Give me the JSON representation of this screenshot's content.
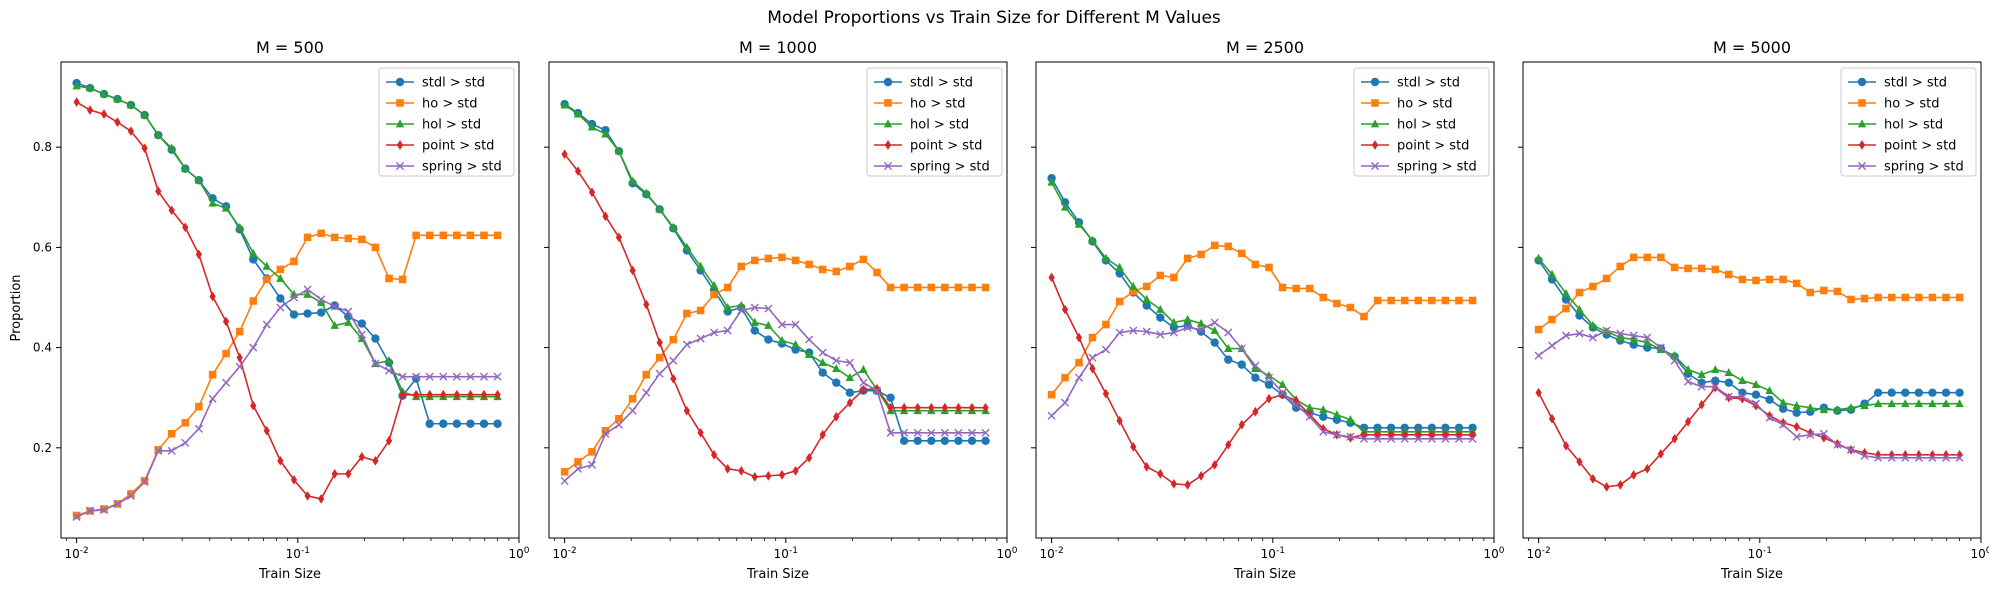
{
  "chart_data": {
    "type": "line",
    "title": "Model Proportions vs Train Size for Different M Values",
    "xlabel": "Train Size",
    "ylabel": "Proportion",
    "xscale": "log",
    "xlim": [
      0.0085,
      1.0
    ],
    "ylim": [
      0.02,
      0.97
    ],
    "yticks": [
      0.2,
      0.4,
      0.6,
      0.8
    ],
    "xtick_labels": [
      "10^-2",
      "10^-1",
      "10^0"
    ],
    "grid": false,
    "legend_position": "upper right",
    "series_styles": [
      {
        "name": "stdl > std",
        "color": "#1f77b4",
        "marker": "o"
      },
      {
        "name": "ho > std",
        "color": "#ff7f0e",
        "marker": "s"
      },
      {
        "name": "hol > std",
        "color": "#2ca02c",
        "marker": "^"
      },
      {
        "name": "point > std",
        "color": "#d62728",
        "marker": "d"
      },
      {
        "name": "spring > std",
        "color": "#9467bd",
        "marker": "x"
      }
    ],
    "x": [
      0.01,
      0.0115,
      0.0133,
      0.0153,
      0.0176,
      0.0203,
      0.0234,
      0.0269,
      0.031,
      0.0357,
      0.0412,
      0.0474,
      0.0546,
      0.0629,
      0.0724,
      0.0834,
      0.0961,
      0.1107,
      0.1275,
      0.1468,
      0.1691,
      0.1948,
      0.2243,
      0.2584,
      0.2976,
      0.3427,
      0.3947,
      0.4547,
      0.5236,
      0.6031,
      0.6946,
      0.8
    ],
    "panels": [
      {
        "title": "M = 500",
        "series": [
          {
            "name": "stdl > std",
            "values": [
              0.928,
              0.918,
              0.906,
              0.896,
              0.884,
              0.864,
              0.824,
              0.795,
              0.757,
              0.734,
              0.698,
              0.682,
              0.636,
              0.576,
              0.538,
              0.498,
              0.466,
              0.468,
              0.47,
              0.484,
              0.462,
              0.448,
              0.418,
              0.37,
              0.304,
              0.338,
              0.248,
              0.248,
              0.248,
              0.248,
              0.248,
              0.248
            ]
          },
          {
            "name": "ho > std",
            "values": [
              0.065,
              0.074,
              0.078,
              0.088,
              0.108,
              0.134,
              0.196,
              0.228,
              0.25,
              0.282,
              0.346,
              0.388,
              0.432,
              0.493,
              0.536,
              0.556,
              0.572,
              0.62,
              0.628,
              0.62,
              0.618,
              0.616,
              0.6,
              0.538,
              0.536,
              0.624,
              0.624,
              0.624,
              0.624,
              0.624,
              0.624,
              0.624
            ]
          },
          {
            "name": "hol > std",
            "values": [
              0.922,
              0.918,
              0.906,
              0.896,
              0.884,
              0.864,
              0.824,
              0.798,
              0.757,
              0.734,
              0.688,
              0.678,
              0.64,
              0.588,
              0.562,
              0.538,
              0.506,
              0.506,
              0.49,
              0.444,
              0.45,
              0.418,
              0.368,
              0.374,
              0.312,
              0.302,
              0.302,
              0.302,
              0.302,
              0.302,
              0.302,
              0.302
            ]
          },
          {
            "name": "point > std",
            "values": [
              0.89,
              0.874,
              0.866,
              0.85,
              0.832,
              0.798,
              0.712,
              0.674,
              0.64,
              0.586,
              0.502,
              0.452,
              0.38,
              0.284,
              0.234,
              0.174,
              0.136,
              0.104,
              0.098,
              0.148,
              0.148,
              0.182,
              0.174,
              0.214,
              0.306,
              0.306,
              0.306,
              0.306,
              0.306,
              0.306,
              0.306,
              0.306
            ]
          },
          {
            "name": "spring > std",
            "values": [
              0.062,
              0.074,
              0.076,
              0.088,
              0.104,
              0.132,
              0.194,
              0.194,
              0.21,
              0.238,
              0.298,
              0.33,
              0.362,
              0.4,
              0.446,
              0.48,
              0.5,
              0.516,
              0.496,
              0.482,
              0.472,
              0.426,
              0.368,
              0.354,
              0.342,
              0.342,
              0.342,
              0.342,
              0.342,
              0.342,
              0.342,
              0.342
            ]
          }
        ]
      },
      {
        "title": "M = 1000",
        "series": [
          {
            "name": "stdl > std",
            "values": [
              0.886,
              0.868,
              0.846,
              0.834,
              0.792,
              0.728,
              0.706,
              0.676,
              0.638,
              0.594,
              0.554,
              0.514,
              0.472,
              0.48,
              0.434,
              0.416,
              0.408,
              0.396,
              0.39,
              0.35,
              0.33,
              0.31,
              0.314,
              0.314,
              0.3,
              0.214,
              0.214,
              0.214,
              0.214,
              0.214,
              0.214,
              0.214
            ]
          },
          {
            "name": "ho > std",
            "values": [
              0.152,
              0.172,
              0.192,
              0.234,
              0.258,
              0.298,
              0.346,
              0.38,
              0.416,
              0.468,
              0.474,
              0.506,
              0.52,
              0.562,
              0.574,
              0.578,
              0.58,
              0.574,
              0.566,
              0.556,
              0.552,
              0.562,
              0.576,
              0.55,
              0.52,
              0.52,
              0.52,
              0.52,
              0.52,
              0.52,
              0.52,
              0.52
            ]
          },
          {
            "name": "hol > std",
            "values": [
              0.884,
              0.866,
              0.84,
              0.826,
              0.792,
              0.732,
              0.708,
              0.676,
              0.64,
              0.6,
              0.562,
              0.524,
              0.48,
              0.484,
              0.45,
              0.444,
              0.414,
              0.406,
              0.386,
              0.37,
              0.358,
              0.34,
              0.356,
              0.316,
              0.274,
              0.274,
              0.274,
              0.274,
              0.274,
              0.274,
              0.274,
              0.274
            ]
          },
          {
            "name": "point > std",
            "values": [
              0.786,
              0.752,
              0.71,
              0.662,
              0.62,
              0.554,
              0.486,
              0.41,
              0.338,
              0.274,
              0.23,
              0.186,
              0.158,
              0.154,
              0.142,
              0.144,
              0.146,
              0.154,
              0.18,
              0.226,
              0.262,
              0.29,
              0.316,
              0.318,
              0.28,
              0.28,
              0.28,
              0.28,
              0.28,
              0.28,
              0.28,
              0.28
            ]
          },
          {
            "name": "spring > std",
            "values": [
              0.134,
              0.158,
              0.166,
              0.228,
              0.246,
              0.274,
              0.31,
              0.348,
              0.374,
              0.406,
              0.418,
              0.43,
              0.434,
              0.474,
              0.48,
              0.478,
              0.446,
              0.446,
              0.416,
              0.39,
              0.374,
              0.37,
              0.33,
              0.314,
              0.23,
              0.23,
              0.23,
              0.23,
              0.23,
              0.23,
              0.23,
              0.23
            ]
          }
        ]
      },
      {
        "title": "M = 2500",
        "series": [
          {
            "name": "stdl > std",
            "values": [
              0.738,
              0.69,
              0.65,
              0.612,
              0.574,
              0.548,
              0.51,
              0.484,
              0.46,
              0.44,
              0.444,
              0.432,
              0.41,
              0.376,
              0.366,
              0.34,
              0.326,
              0.306,
              0.28,
              0.27,
              0.262,
              0.256,
              0.25,
              0.24,
              0.24,
              0.24,
              0.24,
              0.24,
              0.24,
              0.24,
              0.24,
              0.24
            ]
          },
          {
            "name": "ho > std",
            "values": [
              0.306,
              0.34,
              0.37,
              0.42,
              0.446,
              0.492,
              0.512,
              0.522,
              0.544,
              0.54,
              0.578,
              0.586,
              0.604,
              0.602,
              0.588,
              0.566,
              0.56,
              0.52,
              0.518,
              0.518,
              0.5,
              0.488,
              0.48,
              0.462,
              0.494,
              0.494,
              0.494,
              0.494,
              0.494,
              0.494,
              0.494,
              0.494
            ]
          },
          {
            "name": "hol > std",
            "values": [
              0.73,
              0.68,
              0.646,
              0.614,
              0.578,
              0.56,
              0.522,
              0.496,
              0.476,
              0.45,
              0.456,
              0.448,
              0.434,
              0.398,
              0.398,
              0.358,
              0.344,
              0.326,
              0.296,
              0.28,
              0.276,
              0.266,
              0.256,
              0.232,
              0.232,
              0.232,
              0.232,
              0.232,
              0.232,
              0.232,
              0.232,
              0.232
            ]
          },
          {
            "name": "point > std",
            "values": [
              0.54,
              0.476,
              0.42,
              0.358,
              0.308,
              0.254,
              0.202,
              0.162,
              0.148,
              0.128,
              0.126,
              0.144,
              0.166,
              0.206,
              0.246,
              0.272,
              0.298,
              0.306,
              0.294,
              0.266,
              0.238,
              0.226,
              0.22,
              0.226,
              0.226,
              0.226,
              0.226,
              0.226,
              0.226,
              0.226,
              0.226,
              0.226
            ]
          },
          {
            "name": "spring > std",
            "values": [
              0.264,
              0.29,
              0.34,
              0.38,
              0.396,
              0.43,
              0.434,
              0.432,
              0.426,
              0.43,
              0.44,
              0.436,
              0.45,
              0.43,
              0.398,
              0.364,
              0.34,
              0.31,
              0.286,
              0.262,
              0.232,
              0.226,
              0.222,
              0.218,
              0.218,
              0.218,
              0.218,
              0.218,
              0.218,
              0.218,
              0.218,
              0.218
            ]
          }
        ]
      },
      {
        "title": "M = 5000",
        "series": [
          {
            "name": "stdl > std",
            "values": [
              0.574,
              0.536,
              0.496,
              0.464,
              0.44,
              0.426,
              0.414,
              0.406,
              0.4,
              0.398,
              0.382,
              0.348,
              0.33,
              0.334,
              0.33,
              0.31,
              0.306,
              0.296,
              0.278,
              0.27,
              0.272,
              0.28,
              0.274,
              0.276,
              0.288,
              0.31,
              0.31,
              0.31,
              0.31,
              0.31,
              0.31,
              0.31
            ]
          },
          {
            "name": "ho > std",
            "values": [
              0.436,
              0.456,
              0.478,
              0.51,
              0.522,
              0.538,
              0.562,
              0.58,
              0.58,
              0.58,
              0.56,
              0.558,
              0.558,
              0.556,
              0.546,
              0.536,
              0.534,
              0.536,
              0.536,
              0.528,
              0.51,
              0.514,
              0.512,
              0.496,
              0.498,
              0.5,
              0.5,
              0.5,
              0.5,
              0.5,
              0.5,
              0.5
            ]
          },
          {
            "name": "hol > std",
            "values": [
              0.578,
              0.546,
              0.508,
              0.476,
              0.444,
              0.432,
              0.42,
              0.416,
              0.41,
              0.396,
              0.384,
              0.356,
              0.346,
              0.356,
              0.35,
              0.334,
              0.326,
              0.314,
              0.29,
              0.284,
              0.28,
              0.276,
              0.276,
              0.28,
              0.284,
              0.288,
              0.288,
              0.288,
              0.288,
              0.288,
              0.288,
              0.288
            ]
          },
          {
            "name": "point > std",
            "values": [
              0.31,
              0.258,
              0.204,
              0.172,
              0.138,
              0.122,
              0.126,
              0.146,
              0.158,
              0.188,
              0.218,
              0.252,
              0.286,
              0.32,
              0.3,
              0.298,
              0.284,
              0.264,
              0.25,
              0.242,
              0.23,
              0.22,
              0.208,
              0.196,
              0.19,
              0.186,
              0.186,
              0.186,
              0.186,
              0.186,
              0.186,
              0.186
            ]
          },
          {
            "name": "spring > std",
            "values": [
              0.384,
              0.404,
              0.424,
              0.428,
              0.42,
              0.434,
              0.428,
              0.424,
              0.42,
              0.4,
              0.374,
              0.332,
              0.322,
              0.322,
              0.302,
              0.302,
              0.288,
              0.26,
              0.246,
              0.222,
              0.226,
              0.228,
              0.206,
              0.196,
              0.184,
              0.18,
              0.18,
              0.18,
              0.18,
              0.18,
              0.18,
              0.18
            ]
          }
        ]
      }
    ]
  }
}
